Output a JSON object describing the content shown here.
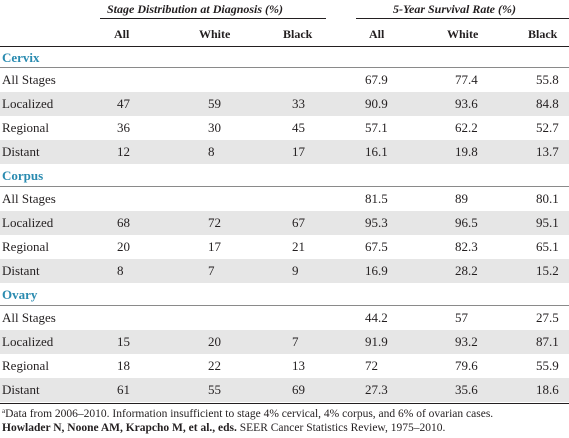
{
  "header": {
    "group1_title": "Stage Distribution at Diagnosis (%)",
    "group2_title": "5-Year Survival Rate (%)",
    "columns": [
      "All",
      "White",
      "Black",
      "All",
      "White",
      "Black"
    ]
  },
  "sections": [
    {
      "name": "Cervix",
      "rows": [
        {
          "label": "All Stages",
          "values": [
            "",
            "",
            "",
            "67.9",
            "77.4",
            "55.8"
          ]
        },
        {
          "label": "Localized",
          "values": [
            "47",
            "59",
            "33",
            "90.9",
            "93.6",
            "84.8"
          ]
        },
        {
          "label": "Regional",
          "values": [
            "36",
            "30",
            "45",
            "57.1",
            "62.2",
            "52.7"
          ]
        },
        {
          "label": "Distant",
          "values": [
            "12",
            "8",
            "17",
            "16.1",
            "19.8",
            "13.7"
          ]
        }
      ]
    },
    {
      "name": "Corpus",
      "rows": [
        {
          "label": "All Stages",
          "values": [
            "",
            "",
            "",
            "81.5",
            "89",
            "80.1"
          ]
        },
        {
          "label": "Localized",
          "values": [
            "68",
            "72",
            "67",
            "95.3",
            "96.5",
            "95.1"
          ]
        },
        {
          "label": "Regional",
          "values": [
            "20",
            "17",
            "21",
            "67.5",
            "82.3",
            "65.1"
          ]
        },
        {
          "label": "Distant",
          "values": [
            "8",
            "7",
            "9",
            "16.9",
            "28.2",
            "15.2"
          ]
        }
      ]
    },
    {
      "name": "Ovary",
      "rows": [
        {
          "label": "All Stages",
          "values": [
            "",
            "",
            "",
            "44.2",
            "57",
            "27.5"
          ]
        },
        {
          "label": "Localized",
          "values": [
            "15",
            "20",
            "7",
            "91.9",
            "93.2",
            "87.1"
          ]
        },
        {
          "label": "Regional",
          "values": [
            "18",
            "22",
            "13",
            "72",
            "79.6",
            "55.9"
          ]
        },
        {
          "label": "Distant",
          "values": [
            "61",
            "55",
            "69",
            "27.3",
            "35.6",
            "18.6"
          ]
        }
      ]
    }
  ],
  "footnote": {
    "marker": "a",
    "text": "Data from 2006–2010. Information insufficient to stage 4% cervical, 4% corpus, and 6% of ovarian cases."
  },
  "source": {
    "authors": "Howlader N, Noone AM, Krapcho M, et al., eds.",
    "title": " SEER Cancer Statistics Review, 1975–2010."
  }
}
